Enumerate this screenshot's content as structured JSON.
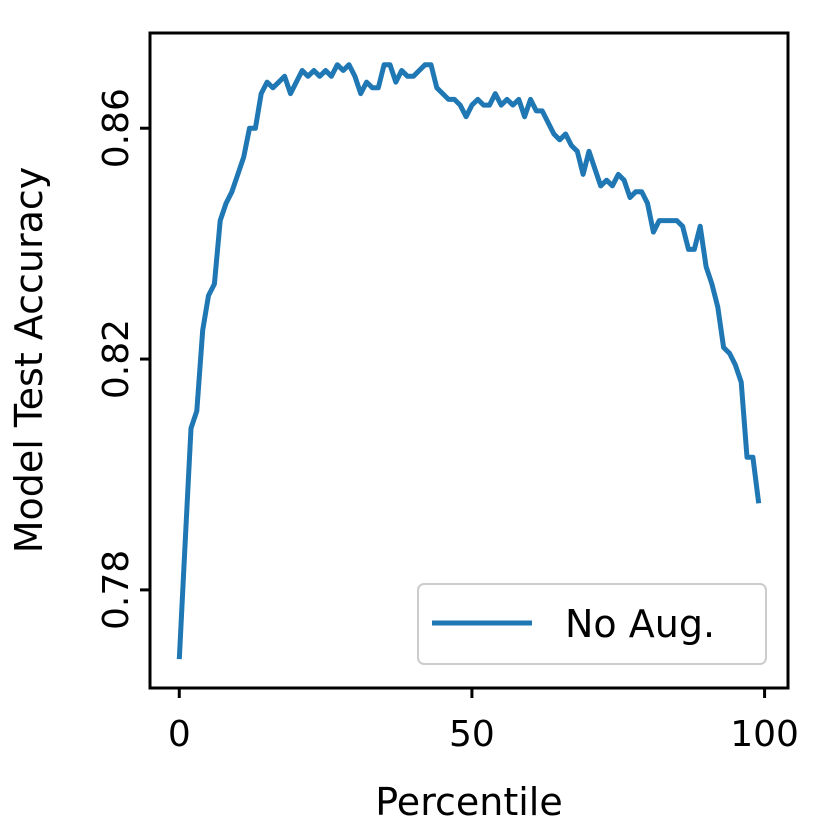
{
  "chart_data": {
    "type": "line",
    "title": "",
    "xlabel": "Percentile",
    "ylabel": "Model Test Accuracy",
    "xlim": [
      -5,
      104
    ],
    "ylim": [
      0.763,
      0.8765
    ],
    "xticks": [
      0,
      50,
      100
    ],
    "xtick_labels": [
      "0",
      "50",
      "100"
    ],
    "yticks": [
      0.78,
      0.82,
      0.86
    ],
    "ytick_labels": [
      "0.78",
      "0.82",
      "0.86"
    ],
    "grid": false,
    "legend_position": "lower-right",
    "series": [
      {
        "name": "No Aug.",
        "color": "#1f77b4",
        "x": [
          0,
          1,
          2,
          3,
          4,
          5,
          6,
          7,
          8,
          9,
          10,
          11,
          12,
          13,
          14,
          15,
          16,
          17,
          18,
          19,
          20,
          21,
          22,
          23,
          24,
          25,
          26,
          27,
          28,
          29,
          30,
          31,
          32,
          33,
          34,
          35,
          36,
          37,
          38,
          39,
          40,
          41,
          42,
          43,
          44,
          45,
          46,
          47,
          48,
          49,
          50,
          51,
          52,
          53,
          54,
          55,
          56,
          57,
          58,
          59,
          60,
          61,
          62,
          63,
          64,
          65,
          66,
          67,
          68,
          69,
          70,
          71,
          72,
          73,
          74,
          75,
          76,
          77,
          78,
          79,
          80,
          81,
          82,
          83,
          84,
          85,
          86,
          87,
          88,
          89,
          90,
          91,
          92,
          93,
          94,
          95,
          96,
          97,
          98,
          99
        ],
        "y": [
          0.768,
          0.788,
          0.808,
          0.811,
          0.825,
          0.831,
          0.833,
          0.844,
          0.847,
          0.849,
          0.852,
          0.855,
          0.86,
          0.86,
          0.866,
          0.868,
          0.867,
          0.868,
          0.869,
          0.866,
          0.868,
          0.87,
          0.869,
          0.87,
          0.869,
          0.87,
          0.869,
          0.871,
          0.87,
          0.871,
          0.869,
          0.866,
          0.868,
          0.867,
          0.867,
          0.871,
          0.871,
          0.868,
          0.87,
          0.869,
          0.869,
          0.87,
          0.871,
          0.871,
          0.867,
          0.866,
          0.865,
          0.865,
          0.864,
          0.862,
          0.864,
          0.865,
          0.864,
          0.864,
          0.866,
          0.864,
          0.865,
          0.864,
          0.865,
          0.862,
          0.865,
          0.863,
          0.863,
          0.861,
          0.859,
          0.858,
          0.859,
          0.857,
          0.856,
          0.852,
          0.856,
          0.853,
          0.85,
          0.851,
          0.85,
          0.852,
          0.851,
          0.848,
          0.849,
          0.849,
          0.847,
          0.842,
          0.844,
          0.844,
          0.844,
          0.844,
          0.843,
          0.839,
          0.839,
          0.843,
          0.836,
          0.833,
          0.829,
          0.822,
          0.821,
          0.819,
          0.816,
          0.803,
          0.803,
          0.795
        ]
      }
    ]
  }
}
